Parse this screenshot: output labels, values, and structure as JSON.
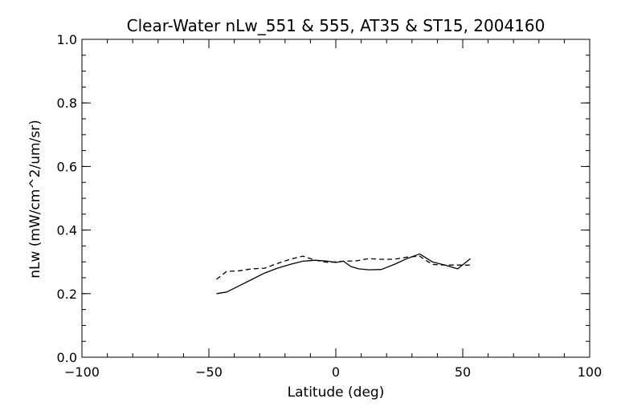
{
  "chart_data": {
    "type": "line",
    "title": "Clear-Water nLw_551 & 555, AT35 & ST15, 2004160",
    "xlabel": "Latitude (deg)",
    "ylabel": "nLw (mW/cm^2/um/sr)",
    "xlim": [
      -100,
      100
    ],
    "ylim": [
      0.0,
      1.0
    ],
    "xticks": [
      -100,
      -50,
      0,
      50,
      100
    ],
    "xtick_labels": [
      "−100",
      "−50",
      "0",
      "50",
      "100"
    ],
    "yticks": [
      0.0,
      0.2,
      0.4,
      0.6,
      0.8,
      1.0
    ],
    "ytick_labels": [
      "0.0",
      "0.2",
      "0.4",
      "0.6",
      "0.8",
      "1.0"
    ],
    "x_minor_step": 10,
    "y_minor_step": 0.05,
    "grid": false,
    "legend": "none",
    "series": [
      {
        "style": "solid",
        "color": "#000000",
        "x": [
          -47,
          -43,
          -38,
          -33,
          -28,
          -23,
          -18,
          -13,
          -8,
          -3,
          0,
          3,
          6,
          9,
          13,
          18,
          23,
          28,
          33,
          38,
          43,
          48,
          53
        ],
        "y": [
          0.2,
          0.205,
          0.225,
          0.245,
          0.265,
          0.28,
          0.292,
          0.302,
          0.305,
          0.302,
          0.298,
          0.302,
          0.285,
          0.278,
          0.275,
          0.276,
          0.292,
          0.31,
          0.325,
          0.3,
          0.29,
          0.278,
          0.31
        ]
      },
      {
        "style": "dashed",
        "color": "#000000",
        "x": [
          -47,
          -43,
          -38,
          -33,
          -28,
          -23,
          -18,
          -13,
          -8,
          -3,
          0,
          3,
          8,
          13,
          18,
          23,
          28,
          33,
          38,
          43,
          48,
          53
        ],
        "y": [
          0.245,
          0.27,
          0.272,
          0.278,
          0.28,
          0.295,
          0.308,
          0.318,
          0.305,
          0.298,
          0.3,
          0.302,
          0.303,
          0.31,
          0.308,
          0.308,
          0.315,
          0.318,
          0.292,
          0.29,
          0.29,
          0.29
        ]
      }
    ]
  }
}
